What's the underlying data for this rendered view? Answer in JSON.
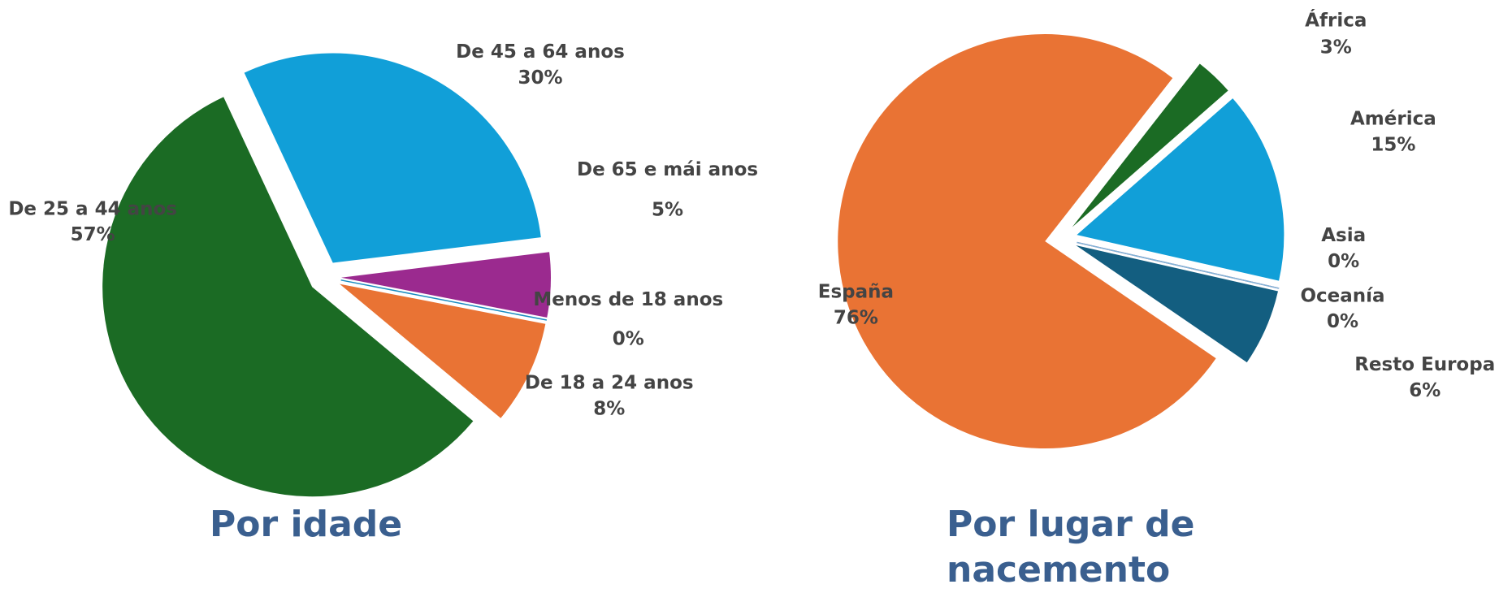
{
  "chart_data": [
    {
      "type": "pie",
      "title": "Por idade",
      "categories": [
        "De 45 a 64 anos",
        "De 65 e mái anos",
        "Menos de 18 anos",
        "De 18 a 24 anos",
        "De 25 a 44 anos"
      ],
      "values": [
        30,
        5,
        0,
        8,
        57
      ],
      "value_labels": [
        "30%",
        "5%",
        "0%",
        "8%",
        "57%"
      ],
      "colors": [
        "#119fd8",
        "#9b2a8f",
        "#1a8cc0",
        "#e97334",
        "#1b6b24"
      ]
    },
    {
      "type": "pie",
      "title": "Por lugar de nacemento",
      "categories": [
        "África",
        "América",
        "Asia",
        "Oceanía",
        "Resto Europa",
        "España"
      ],
      "values": [
        3,
        15,
        0,
        0,
        6,
        76
      ],
      "value_labels": [
        "3%",
        "15%",
        "0%",
        "0%",
        "6%",
        "76%"
      ],
      "colors": [
        "#1b6b24",
        "#119fd8",
        "#9b2a8f",
        "#7fb8d8",
        "#135e80",
        "#e97334"
      ]
    }
  ]
}
